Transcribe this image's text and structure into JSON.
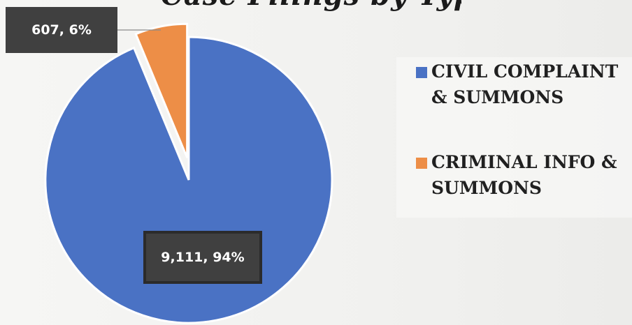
{
  "page": {
    "title_fragment": "Case Filings by Type"
  },
  "chart_data": {
    "type": "pie",
    "categories": [
      "CIVIL COMPLAINT & SUMMONS",
      "CRIMINAL INFO & SUMMONS"
    ],
    "values": [
      9111,
      607
    ],
    "percents": [
      94,
      6
    ],
    "data_labels": [
      "9,111, 94%",
      "607, 6%"
    ],
    "colors": [
      "#4a72c4",
      "#ed8e47"
    ],
    "legend": {
      "placement": "right",
      "items": [
        {
          "label_line1": "CIVIL COMPLAINT",
          "label_line2": "& SUMMONS"
        },
        {
          "label_line1": "CRIMINAL INFO &",
          "label_line2": "SUMMONS"
        }
      ]
    }
  }
}
